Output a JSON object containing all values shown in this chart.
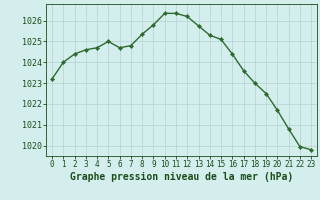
{
  "x": [
    0,
    1,
    2,
    3,
    4,
    5,
    6,
    7,
    8,
    9,
    10,
    11,
    12,
    13,
    14,
    15,
    16,
    17,
    18,
    19,
    20,
    21,
    22,
    23
  ],
  "y": [
    1023.2,
    1024.0,
    1024.4,
    1024.6,
    1024.7,
    1025.0,
    1024.7,
    1024.8,
    1025.35,
    1025.8,
    1026.35,
    1026.35,
    1026.2,
    1025.75,
    1025.3,
    1025.1,
    1024.4,
    1023.6,
    1023.0,
    1022.5,
    1021.7,
    1020.8,
    1019.95,
    1019.8
  ],
  "line_color": "#2d6a2d",
  "marker": "D",
  "marker_size": 2.2,
  "bg_color": "#d4eeed",
  "grid_color": "#b8d8d4",
  "title": "Graphe pression niveau de la mer (hPa)",
  "ylim": [
    1019.5,
    1026.8
  ],
  "yticks": [
    1020,
    1021,
    1022,
    1023,
    1024,
    1025,
    1026
  ],
  "title_fontsize": 7.0,
  "tick_color": "#1a4d1a",
  "tick_fontsize": 6.0,
  "xtick_fontsize": 5.5,
  "line_width": 1.0
}
